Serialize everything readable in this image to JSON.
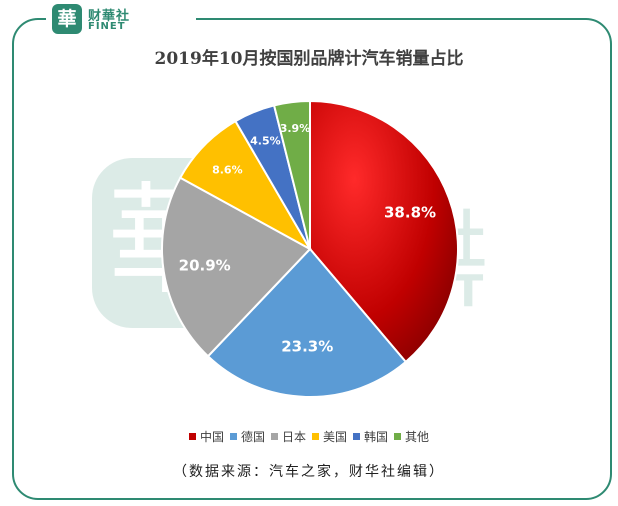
{
  "logo": {
    "seal": "華",
    "name_cn": "财華社",
    "name_en": "FINET"
  },
  "watermark": {
    "seal": "華",
    "name_cn": "财華社",
    "name_en": "FINET"
  },
  "chart_data": {
    "type": "pie",
    "title": "2019年10月按国别品牌计汽车销量占比",
    "slices": [
      {
        "label": "中国",
        "value": 38.8,
        "display": "38.8%",
        "color": "#c00000"
      },
      {
        "label": "德国",
        "value": 23.3,
        "display": "23.3%",
        "color": "#5b9bd5"
      },
      {
        "label": "日本",
        "value": 20.9,
        "display": "20.9%",
        "color": "#a5a5a5"
      },
      {
        "label": "美国",
        "value": 8.6,
        "display": "8.6%",
        "color": "#ffc000"
      },
      {
        "label": "韩国",
        "value": 4.5,
        "display": "4.5%",
        "color": "#4472c4"
      },
      {
        "label": "其他",
        "value": 3.9,
        "display": "3.9%",
        "color": "#70ad47"
      }
    ],
    "legend_position": "bottom"
  },
  "source_note": "（数据来源：汽车之家，财华社编辑）"
}
